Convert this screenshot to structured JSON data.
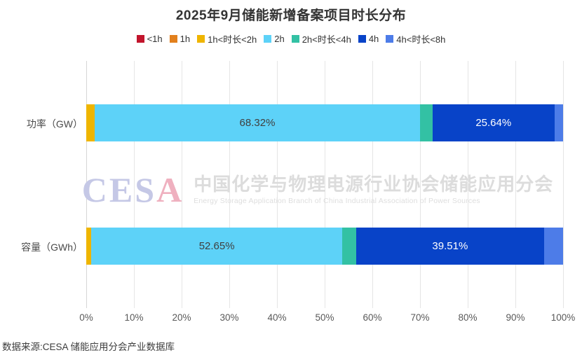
{
  "title": "2025年9月储能新增备案项目时长分布",
  "source_note": "数据来源:CESA 储能应用分会产业数据库",
  "watermark": {
    "logo": "CESA",
    "logo_letter_colors": [
      "#c5c8e6",
      "#c5c8e6",
      "#c5c8e6",
      "#efb0bf"
    ],
    "cn_text": "中国化学与物理电源行业协会储能应用分会",
    "en_text": "Energy Storage Application Branch of China Industrial Association of Power Sources"
  },
  "chart_data": {
    "type": "bar",
    "orientation": "horizontal-stacked",
    "categories": [
      "功率（GW）",
      "容量（GWh）"
    ],
    "series": [
      {
        "name": "<1h",
        "color": "#c2152c",
        "values": [
          0,
          0
        ],
        "labels": [
          "",
          ""
        ]
      },
      {
        "name": "1h",
        "color": "#e2801d",
        "values": [
          0,
          0
        ],
        "labels": [
          "",
          ""
        ]
      },
      {
        "name": "1h<时长<2h",
        "color": "#efb500",
        "values": [
          1.72,
          1.05
        ],
        "labels": [
          "",
          ""
        ]
      },
      {
        "name": "2h",
        "color": "#5dd2f8",
        "values": [
          68.32,
          52.65
        ],
        "labels": [
          "68.32%",
          "52.65%"
        ],
        "label_color": "#404040"
      },
      {
        "name": "2h<时长<4h",
        "color": "#33c1a4",
        "values": [
          2.55,
          2.85
        ],
        "labels": [
          "",
          ""
        ]
      },
      {
        "name": "4h",
        "color": "#0843c8",
        "values": [
          25.64,
          39.51
        ],
        "labels": [
          "25.64%",
          "39.51%"
        ],
        "label_color": "#ffffff"
      },
      {
        "name": "4h<时长<8h",
        "color": "#4d7ce8",
        "values": [
          1.77,
          3.94
        ],
        "labels": [
          "",
          ""
        ]
      }
    ],
    "x_ticks": [
      "0%",
      "10%",
      "20%",
      "30%",
      "40%",
      "50%",
      "60%",
      "70%",
      "80%",
      "90%",
      "100%"
    ],
    "xlim": [
      0,
      100
    ],
    "layout": {
      "grid": "vertical",
      "gridline_color": "#e5e5e5",
      "legend_position": "top-center"
    }
  }
}
